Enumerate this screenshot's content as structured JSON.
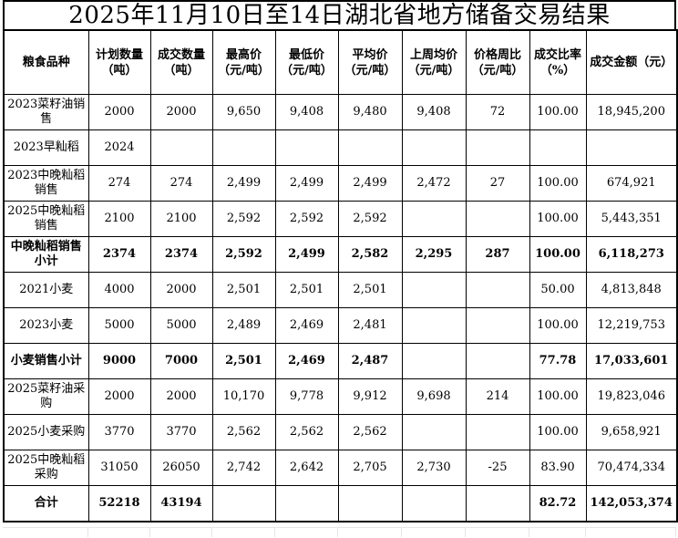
{
  "title": "2025年11月10日至14日湖北省地方储备交易结果",
  "colors": {
    "border": "#000000",
    "text": "#000000",
    "background": "#ffffff",
    "faint_grid": "#e6e6e6"
  },
  "table": {
    "headers": [
      "粮食品种",
      "计划数量（吨）",
      "成交数量（吨）",
      "最高价（元/吨）",
      "最低价（元/吨）",
      "平均价（元/吨）",
      "上周均价（元/吨）",
      "价格周比（元/吨）",
      "成交比率（%）",
      "成交金额（元）"
    ],
    "rows": [
      {
        "bold": false,
        "cells": [
          "2023菜籽油销售",
          "2000",
          "2000",
          "9,650",
          "9,408",
          "9,480",
          "9,408",
          "72",
          "100.00",
          "18,945,200"
        ]
      },
      {
        "bold": false,
        "cells": [
          "2023早籼稻",
          "2024",
          "",
          "",
          "",
          "",
          "",
          "",
          "",
          ""
        ]
      },
      {
        "bold": false,
        "cells": [
          "2023中晚籼稻销售",
          "274",
          "274",
          "2,499",
          "2,499",
          "2,499",
          "2,472",
          "27",
          "100.00",
          "674,921"
        ]
      },
      {
        "bold": false,
        "cells": [
          "2025中晚籼稻销售",
          "2100",
          "2100",
          "2,592",
          "2,592",
          "2,592",
          "",
          "",
          "100.00",
          "5,443,351"
        ]
      },
      {
        "bold": true,
        "cells": [
          "中晚籼稻销售小计",
          "2374",
          "2374",
          "2,592",
          "2,499",
          "2,582",
          "2,295",
          "287",
          "100.00",
          "6,118,273"
        ]
      },
      {
        "bold": false,
        "cells": [
          "2021小麦",
          "4000",
          "2000",
          "2,501",
          "2,501",
          "2,501",
          "",
          "",
          "50.00",
          "4,813,848"
        ]
      },
      {
        "bold": false,
        "cells": [
          "2023小麦",
          "5000",
          "5000",
          "2,489",
          "2,469",
          "2,481",
          "",
          "",
          "100.00",
          "12,219,753"
        ]
      },
      {
        "bold": true,
        "cells": [
          "小麦销售小计",
          "9000",
          "7000",
          "2,501",
          "2,469",
          "2,487",
          "",
          "",
          "77.78",
          "17,033,601"
        ]
      },
      {
        "bold": false,
        "cells": [
          "2025菜籽油采购",
          "2000",
          "2000",
          "10,170",
          "9,778",
          "9,912",
          "9,698",
          "214",
          "100.00",
          "19,823,046"
        ]
      },
      {
        "bold": false,
        "cells": [
          "2025小麦采购",
          "3770",
          "3770",
          "2,562",
          "2,562",
          "2,562",
          "",
          "",
          "100.00",
          "9,658,921"
        ]
      },
      {
        "bold": false,
        "cells": [
          "2025中晚籼稻采购",
          "31050",
          "26050",
          "2,742",
          "2,642",
          "2,705",
          "2,730",
          "-25",
          "83.90",
          "70,474,334"
        ]
      },
      {
        "bold": true,
        "cells": [
          "合计",
          "52218",
          "43194",
          "",
          "",
          "",
          "",
          "",
          "82.72",
          "142,053,374"
        ]
      }
    ]
  }
}
